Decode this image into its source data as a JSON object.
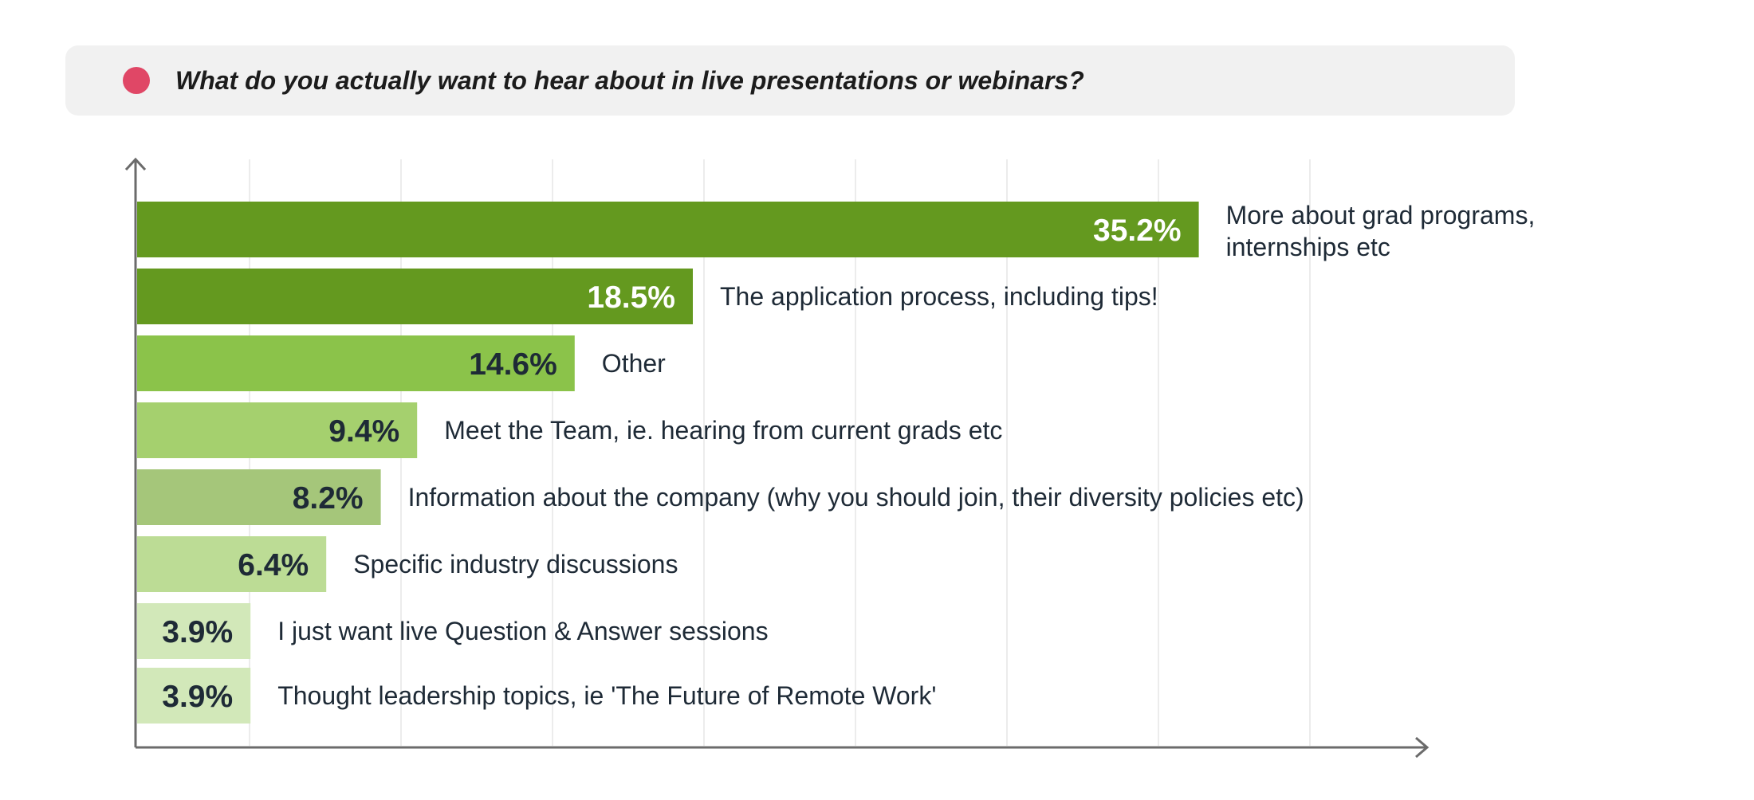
{
  "header": {
    "title": "What do you actually want to hear about in live presentations or webinars?",
    "dot_color": "#e04766"
  },
  "chart_data": {
    "type": "bar",
    "orientation": "horizontal",
    "title": "What do you actually want to hear about in live presentations or webinars?",
    "xlabel": "",
    "ylabel": "",
    "xlim": [
      0,
      40
    ],
    "grid": true,
    "categories": [
      "More about grad programs, internships etc",
      "The application process, including tips!",
      "Other",
      "Meet the Team, ie. hearing from current grads etc",
      "Information about the company (why you should join, their diversity policies etc)",
      "Specific industry discussions",
      "I just want live Question & Answer sessions",
      "Thought leadership topics, ie 'The Future of Remote Work'"
    ],
    "category_lines": [
      [
        "More about grad programs,",
        "internships etc"
      ],
      [
        "The application process, including tips!"
      ],
      [
        "Other"
      ],
      [
        "Meet the Team, ie. hearing from current grads etc"
      ],
      [
        "Information about the company (why you should join, their diversity policies etc)"
      ],
      [
        "Specific industry discussions"
      ],
      [
        "I just want live Question & Answer sessions"
      ],
      [
        "Thought leadership topics, ie 'The Future of Remote Work'"
      ]
    ],
    "values": [
      35.2,
      18.5,
      14.6,
      9.4,
      8.2,
      6.4,
      3.9,
      3.9
    ],
    "value_labels": [
      "35.2%",
      "18.5%",
      "14.6%",
      "9.4%",
      "8.2%",
      "6.4%",
      "3.9%",
      "3.9%"
    ],
    "bar_colors": [
      "#64991f",
      "#64991f",
      "#8bc34a",
      "#a5d06e",
      "#a5c67a",
      "#bcdc95",
      "#d2e8b9",
      "#d2e8b9"
    ],
    "value_label_colors": [
      "#ffffff",
      "#ffffff",
      "#1e2a36",
      "#1e2a36",
      "#1e2a36",
      "#1e2a36",
      "#1e2a36",
      "#1e2a36"
    ],
    "axis_color": "#6b6b6b",
    "grid_color": "#ececec"
  }
}
